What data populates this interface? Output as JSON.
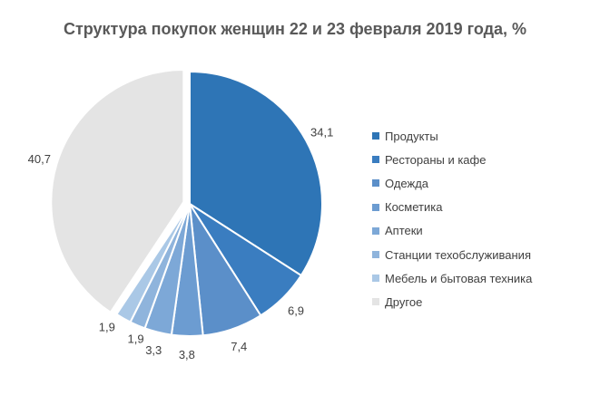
{
  "chart_data": {
    "type": "pie",
    "title": "Структура покупок женщин 22 и 23  февраля 2019 года, %",
    "categories": [
      "Продукты",
      "Рестораны и кафе",
      "Одежда",
      "Косметика",
      "Аптеки",
      "Станции техобслуживания",
      "Мебель и бытовая техника",
      "Другое"
    ],
    "values": [
      34.1,
      6.9,
      7.4,
      3.8,
      3.3,
      1.9,
      1.9,
      40.7
    ],
    "labels": [
      "34,1",
      "6,9",
      "7,4",
      "3,8",
      "3,3",
      "1,9",
      "1,9",
      "40,7"
    ],
    "colors": [
      "#2E75B6",
      "#3A7DC0",
      "#5B8FC9",
      "#6C9CD1",
      "#7DA8D7",
      "#8FB4DC",
      "#AAC8E6",
      "#E4E4E4"
    ],
    "exploded": [
      false,
      false,
      false,
      false,
      false,
      false,
      false,
      true
    ],
    "legend_position": "right"
  }
}
